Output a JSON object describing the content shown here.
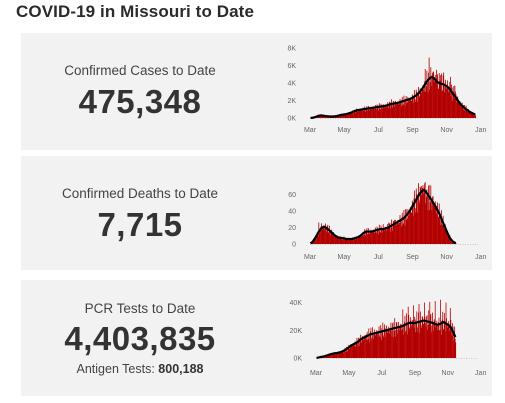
{
  "page": {
    "title": "COVID-19 in Missouri to Date"
  },
  "panels": [
    {
      "label": "Confirmed Cases to Date",
      "value": "475,348"
    },
    {
      "label": "Confirmed Deaths to Date",
      "value": "7,715"
    },
    {
      "label": "PCR Tests to Date",
      "value": "4,403,835",
      "sub_label": "Antigen Tests:",
      "sub_value": "800,188"
    }
  ],
  "colors": {
    "bar": "#b30000",
    "average_line": "#000000",
    "panel_bg": "#f2f2f2"
  },
  "chart_data": [
    {
      "type": "bar",
      "series": [
        {
          "name": "",
          "values": "daily"
        },
        {
          "name": "",
          "values": "average"
        }
      ],
      "x": [
        "2020-03",
        "2021-03"
      ],
      "x_ticks": [
        "Mar",
        "May",
        "Jul",
        "Sep",
        "Nov",
        "Jan",
        "Mar"
      ],
      "y_ticks": [
        "0K",
        "2K",
        "4K",
        "6K",
        "8K"
      ],
      "ylim": [
        0,
        8000
      ],
      "keyframes": [
        [
          0,
          0
        ],
        [
          5,
          30
        ],
        [
          10,
          120
        ],
        [
          15,
          250
        ],
        [
          20,
          300
        ],
        [
          25,
          250
        ],
        [
          30,
          200
        ],
        [
          35,
          180
        ],
        [
          40,
          170
        ],
        [
          45,
          200
        ],
        [
          50,
          260
        ],
        [
          55,
          350
        ],
        [
          60,
          400
        ],
        [
          65,
          450
        ],
        [
          70,
          550
        ],
        [
          75,
          650
        ],
        [
          80,
          800
        ],
        [
          85,
          900
        ],
        [
          90,
          950
        ],
        [
          95,
          1000
        ],
        [
          100,
          1050
        ],
        [
          105,
          1100
        ],
        [
          110,
          1150
        ],
        [
          115,
          1200
        ],
        [
          120,
          1250
        ],
        [
          125,
          1300
        ],
        [
          130,
          1350
        ],
        [
          135,
          1400
        ],
        [
          140,
          1500
        ],
        [
          145,
          1600
        ],
        [
          150,
          1650
        ],
        [
          155,
          1700
        ],
        [
          160,
          1800
        ],
        [
          165,
          1900
        ],
        [
          170,
          2000
        ],
        [
          175,
          2100
        ],
        [
          180,
          2200
        ],
        [
          185,
          2400
        ],
        [
          190,
          2600
        ],
        [
          195,
          2900
        ],
        [
          200,
          3300
        ],
        [
          205,
          3800
        ],
        [
          210,
          4300
        ],
        [
          215,
          4600
        ],
        [
          218,
          4700
        ],
        [
          222,
          4500
        ],
        [
          226,
          4200
        ],
        [
          230,
          4000
        ],
        [
          235,
          3900
        ],
        [
          240,
          3800
        ],
        [
          245,
          3600
        ],
        [
          250,
          3300
        ],
        [
          255,
          2800
        ],
        [
          260,
          2400
        ],
        [
          265,
          1900
        ],
        [
          270,
          1500
        ],
        [
          275,
          1200
        ],
        [
          280,
          950
        ],
        [
          285,
          700
        ],
        [
          290,
          550
        ],
        [
          295,
          400
        ]
      ],
      "spikes": [
        [
          212,
          6900
        ],
        [
          205,
          5600
        ],
        [
          215,
          5800
        ],
        [
          220,
          5300
        ],
        [
          225,
          5500
        ],
        [
          232,
          4900
        ],
        [
          238,
          5200
        ],
        [
          245,
          4300
        ],
        [
          250,
          4700
        ],
        [
          258,
          3700
        ]
      ]
    },
    {
      "type": "bar",
      "series": [
        {
          "name": "",
          "values": "daily"
        },
        {
          "name": "",
          "values": "average"
        }
      ],
      "x": [
        "2020-03",
        "2021-03"
      ],
      "x_ticks": [
        "Mar",
        "May",
        "Jul",
        "Sep",
        "Nov",
        "Jan"
      ],
      "y_ticks": [
        "0",
        "20",
        "40",
        "60"
      ],
      "ylim": [
        0,
        70
      ],
      "keyframes": [
        [
          0,
          0
        ],
        [
          5,
          3
        ],
        [
          10,
          8
        ],
        [
          15,
          14
        ],
        [
          20,
          19
        ],
        [
          25,
          21
        ],
        [
          30,
          19
        ],
        [
          35,
          16
        ],
        [
          40,
          13
        ],
        [
          45,
          10
        ],
        [
          50,
          8
        ],
        [
          55,
          7
        ],
        [
          60,
          7
        ],
        [
          65,
          6
        ],
        [
          70,
          6
        ],
        [
          75,
          6
        ],
        [
          80,
          7
        ],
        [
          85,
          8
        ],
        [
          90,
          10
        ],
        [
          95,
          13
        ],
        [
          100,
          15
        ],
        [
          105,
          15
        ],
        [
          110,
          15
        ],
        [
          115,
          16
        ],
        [
          120,
          17
        ],
        [
          125,
          18
        ],
        [
          130,
          18
        ],
        [
          135,
          19
        ],
        [
          140,
          20
        ],
        [
          145,
          22
        ],
        [
          150,
          24
        ],
        [
          155,
          26
        ],
        [
          160,
          28
        ],
        [
          165,
          30
        ],
        [
          170,
          33
        ],
        [
          175,
          37
        ],
        [
          180,
          42
        ],
        [
          185,
          48
        ],
        [
          190,
          54
        ],
        [
          195,
          60
        ],
        [
          200,
          64
        ],
        [
          203,
          65
        ],
        [
          206,
          64
        ],
        [
          210,
          60
        ],
        [
          215,
          55
        ],
        [
          220,
          50
        ],
        [
          225,
          44
        ],
        [
          230,
          38
        ],
        [
          235,
          30
        ],
        [
          240,
          22
        ],
        [
          245,
          14
        ],
        [
          250,
          7
        ],
        [
          255,
          3
        ],
        [
          260,
          1
        ]
      ],
      "spikes": [
        [
          198,
          70
        ],
        [
          203,
          68
        ],
        [
          208,
          66
        ],
        [
          190,
          60
        ],
        [
          185,
          55
        ],
        [
          170,
          42
        ],
        [
          160,
          35
        ],
        [
          15,
          26
        ],
        [
          20,
          25
        ],
        [
          130,
          24
        ],
        [
          140,
          26
        ],
        [
          150,
          29
        ]
      ]
    },
    {
      "type": "bar",
      "series": [
        {
          "name": "",
          "values": "daily"
        },
        {
          "name": "",
          "values": "average"
        }
      ],
      "x": [
        "2020-03",
        "2021-03"
      ],
      "x_ticks": [
        "Mar",
        "May",
        "Jul",
        "Sep",
        "Nov",
        "Jan",
        "Mar"
      ],
      "y_ticks": [
        "0K",
        "20K",
        "40K"
      ],
      "ylim": [
        0,
        44000
      ],
      "keyframes": [
        [
          0,
          0
        ],
        [
          5,
          400
        ],
        [
          10,
          800
        ],
        [
          15,
          1200
        ],
        [
          20,
          1800
        ],
        [
          25,
          2500
        ],
        [
          30,
          3000
        ],
        [
          35,
          3400
        ],
        [
          40,
          3700
        ],
        [
          45,
          4200
        ],
        [
          50,
          5000
        ],
        [
          55,
          6000
        ],
        [
          60,
          7500
        ],
        [
          65,
          9000
        ],
        [
          70,
          10000
        ],
        [
          75,
          11000
        ],
        [
          80,
          12500
        ],
        [
          85,
          14000
        ],
        [
          90,
          15000
        ],
        [
          95,
          16000
        ],
        [
          100,
          17000
        ],
        [
          105,
          17500
        ],
        [
          110,
          18000
        ],
        [
          115,
          18500
        ],
        [
          120,
          19000
        ],
        [
          125,
          19500
        ],
        [
          130,
          20000
        ],
        [
          135,
          20500
        ],
        [
          140,
          21000
        ],
        [
          145,
          21500
        ],
        [
          150,
          22000
        ],
        [
          155,
          22500
        ],
        [
          160,
          23000
        ],
        [
          165,
          24000
        ],
        [
          170,
          25000
        ],
        [
          175,
          25500
        ],
        [
          180,
          25000
        ],
        [
          185,
          25500
        ],
        [
          190,
          26000
        ],
        [
          195,
          26500
        ],
        [
          200,
          27000
        ],
        [
          205,
          26500
        ],
        [
          210,
          26000
        ],
        [
          215,
          25500
        ],
        [
          220,
          24500
        ],
        [
          225,
          24000
        ],
        [
          230,
          24500
        ],
        [
          235,
          26000
        ],
        [
          240,
          25000
        ],
        [
          245,
          24000
        ],
        [
          250,
          22000
        ],
        [
          255,
          18000
        ],
        [
          258,
          15000
        ]
      ],
      "spikes": [
        [
          160,
          35000
        ],
        [
          170,
          37000
        ],
        [
          180,
          38000
        ],
        [
          190,
          39000
        ],
        [
          200,
          40000
        ],
        [
          210,
          40500
        ],
        [
          220,
          41000
        ],
        [
          230,
          42000
        ],
        [
          240,
          40000
        ],
        [
          248,
          36000
        ]
      ]
    }
  ]
}
